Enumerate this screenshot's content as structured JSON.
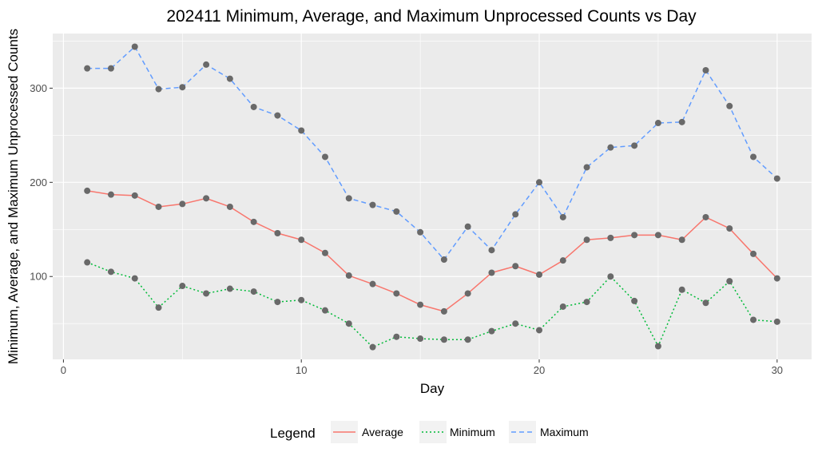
{
  "chart_data": {
    "type": "line",
    "title": "202411 Minimum, Average, and Maximum Unprocessed Counts vs Day",
    "xlabel": "Day",
    "ylabel": "Minimum, Average, and Maximum Unprocessed Counts",
    "xlim": [
      -0.45,
      31.45
    ],
    "ylim": [
      12,
      358
    ],
    "x_ticks": [
      0,
      10,
      20,
      30
    ],
    "y_ticks": [
      100,
      200,
      300
    ],
    "grid": true,
    "legend": {
      "title": "Legend",
      "position": "bottom",
      "entries": [
        {
          "label": "Average",
          "color": "#F8766D",
          "dash": "solid"
        },
        {
          "label": "Minimum",
          "color": "#00BA38",
          "dash": "dotted"
        },
        {
          "label": "Maximum",
          "color": "#619CFF",
          "dash": "dashed"
        }
      ]
    },
    "point_color": "#696969",
    "x": [
      1,
      2,
      3,
      4,
      5,
      6,
      7,
      8,
      9,
      10,
      11,
      12,
      13,
      14,
      15,
      16,
      17,
      18,
      19,
      20,
      21,
      22,
      23,
      24,
      25,
      26,
      27,
      28,
      29,
      30
    ],
    "series": [
      {
        "name": "Average",
        "color": "#F8766D",
        "dash": "solid",
        "values": [
          191,
          187,
          186,
          174,
          177,
          183,
          174,
          158,
          146,
          139,
          125,
          101,
          92,
          82,
          70,
          63,
          82,
          104,
          111,
          102,
          117,
          139,
          141,
          144,
          144,
          139,
          163,
          151,
          124,
          98
        ]
      },
      {
        "name": "Minimum",
        "color": "#00BA38",
        "dash": "dotted",
        "values": [
          115,
          105,
          98,
          67,
          90,
          82,
          87,
          84,
          73,
          75,
          64,
          50,
          25,
          36,
          34,
          33,
          33,
          42,
          50,
          43,
          68,
          73,
          100,
          74,
          26,
          86,
          72,
          95,
          54,
          52
        ]
      },
      {
        "name": "Maximum",
        "color": "#619CFF",
        "dash": "dashed",
        "values": [
          321,
          321,
          344,
          299,
          301,
          325,
          310,
          280,
          271,
          255,
          227,
          183,
          176,
          169,
          147,
          118,
          153,
          128,
          166,
          200,
          163,
          216,
          237,
          239,
          263,
          264,
          319,
          281,
          227,
          204
        ]
      }
    ]
  }
}
